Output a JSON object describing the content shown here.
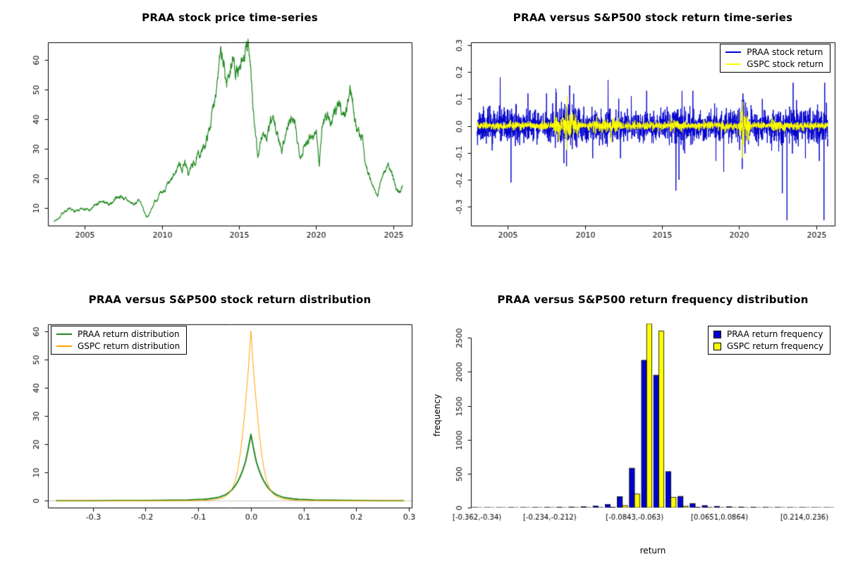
{
  "chart_data": [
    {
      "id": "price",
      "type": "price-line",
      "title": "PRAA stock price time-series",
      "color": "#228B22",
      "xlim": [
        2002.6,
        2026.2
      ],
      "xticks": [
        2005,
        2010,
        2015,
        2020,
        2025
      ],
      "xtick_labels": [
        "2005",
        "2010",
        "2015",
        "2020",
        "2025"
      ],
      "ylim": [
        4,
        66
      ],
      "yticks": [
        10,
        20,
        30,
        40,
        50,
        60
      ],
      "ytick_labels": [
        "10",
        "20",
        "30",
        "40",
        "50",
        "60"
      ],
      "noise": 0.06,
      "seed": 7,
      "anchors": {
        "x": [
          2003.0,
          2003.3,
          2003.6,
          2003.9,
          2004.2,
          2004.5,
          2004.8,
          2005.0,
          2005.3,
          2005.6,
          2005.9,
          2006.2,
          2006.5,
          2006.8,
          2007.0,
          2007.3,
          2007.6,
          2007.9,
          2008.2,
          2008.5,
          2008.8,
          2009.0,
          2009.2,
          2009.5,
          2009.8,
          2010.0,
          2010.3,
          2010.6,
          2010.9,
          2011.1,
          2011.3,
          2011.5,
          2011.7,
          2011.9,
          2012.1,
          2012.4,
          2012.7,
          2013.0,
          2013.2,
          2013.4,
          2013.6,
          2013.8,
          2014.0,
          2014.2,
          2014.4,
          2014.6,
          2014.8,
          2015.0,
          2015.2,
          2015.4,
          2015.6,
          2015.75,
          2015.9,
          2016.0,
          2016.2,
          2016.4,
          2016.6,
          2016.8,
          2017.0,
          2017.2,
          2017.4,
          2017.6,
          2017.8,
          2018.0,
          2018.2,
          2018.4,
          2018.6,
          2018.8,
          2019.0,
          2019.2,
          2019.4,
          2019.6,
          2019.8,
          2020.0,
          2020.2,
          2020.4,
          2020.6,
          2020.8,
          2021.0,
          2021.2,
          2021.4,
          2021.6,
          2021.8,
          2022.0,
          2022.2,
          2022.4,
          2022.6,
          2022.8,
          2023.0,
          2023.2,
          2023.4,
          2023.6,
          2023.8,
          2024.0,
          2024.2,
          2024.4,
          2024.6,
          2024.8,
          2025.0,
          2025.2,
          2025.4,
          2025.6
        ],
        "y": [
          5.5,
          6.5,
          8.5,
          9.5,
          9.0,
          8.8,
          9.5,
          10.0,
          9.0,
          10.5,
          11.5,
          12.0,
          11.0,
          12.0,
          13.5,
          14.0,
          13.0,
          12.0,
          11.0,
          13.0,
          9.0,
          7.0,
          8.0,
          12.0,
          14.0,
          15.0,
          17.0,
          19.0,
          22.0,
          25.5,
          23.0,
          26.0,
          21.0,
          24.0,
          25.0,
          28.0,
          30.0,
          35.0,
          40.0,
          47.0,
          55.0,
          61.0,
          58.0,
          52.0,
          57.0,
          60.0,
          57.0,
          55.0,
          58.0,
          62.0,
          64.0,
          60.0,
          45.0,
          38.0,
          27.0,
          32.0,
          36.0,
          33.0,
          38.0,
          40.0,
          36.0,
          33.0,
          30.0,
          35.0,
          38.0,
          40.0,
          38.0,
          32.0,
          28.0,
          30.0,
          33.0,
          35.0,
          34.0,
          36.0,
          25.0,
          38.0,
          42.0,
          40.0,
          38.0,
          42.0,
          46.0,
          44.0,
          41.0,
          44.0,
          50.0,
          46.0,
          38.0,
          35.0,
          34.0,
          25.0,
          22.0,
          18.0,
          16.0,
          13.5,
          20.0,
          22.0,
          24.0,
          23.0,
          20.0,
          17.0,
          15.0,
          17.5
        ]
      }
    },
    {
      "id": "returns",
      "type": "return-noise",
      "title": "PRAA versus S&P500 stock return time-series",
      "xlim": [
        2002.6,
        2026.2
      ],
      "xspan": [
        2003.0,
        2025.75
      ],
      "xticks": [
        2005,
        2010,
        2015,
        2020,
        2025
      ],
      "xtick_labels": [
        "2005",
        "2010",
        "2015",
        "2020",
        "2025"
      ],
      "ylim": [
        -0.37,
        0.31
      ],
      "yticks": [
        -0.3,
        -0.2,
        -0.1,
        0,
        0.1,
        0.2,
        0.3
      ],
      "ytick_labels": [
        "-0.3",
        "-0.2",
        "-0.1",
        "0.0",
        "0.1",
        "0.2",
        "0.3"
      ],
      "n": 2400,
      "series": [
        {
          "name": "PRAA stock return",
          "color": "#0000CD",
          "base_sd": 0.028,
          "clip": 0.36,
          "seed": 11,
          "vol_windows": [
            [
              2003,
              2004,
              0.032
            ],
            [
              2008,
              2009.6,
              0.04
            ],
            [
              2011,
              2012.2,
              0.032
            ],
            [
              2015.8,
              2016.6,
              0.038
            ],
            [
              2020,
              2020.6,
              0.04
            ],
            [
              2022.5,
              2025.8,
              0.034
            ]
          ],
          "spikes": [
            [
              2004.5,
              0.18
            ],
            [
              2005.2,
              -0.21
            ],
            [
              2006.3,
              0.12
            ],
            [
              2007.5,
              0.12
            ],
            [
              2008.8,
              -0.15
            ],
            [
              2009.0,
              0.15
            ],
            [
              2010.5,
              -0.12
            ],
            [
              2011.5,
              0.17
            ],
            [
              2012.3,
              -0.12
            ],
            [
              2013.0,
              0.11
            ],
            [
              2014.0,
              0.13
            ],
            [
              2015.9,
              -0.24
            ],
            [
              2016.1,
              -0.2
            ],
            [
              2016.3,
              0.13
            ],
            [
              2017.0,
              0.13
            ],
            [
              2018.5,
              -0.13
            ],
            [
              2019.0,
              -0.17
            ],
            [
              2020.2,
              -0.16
            ],
            [
              2020.25,
              0.12
            ],
            [
              2021.5,
              0.1
            ],
            [
              2022.8,
              -0.25
            ],
            [
              2023.1,
              -0.35
            ],
            [
              2023.5,
              0.16
            ],
            [
              2024.3,
              -0.12
            ],
            [
              2025.2,
              -0.13
            ],
            [
              2025.5,
              -0.35
            ],
            [
              2025.55,
              0.16
            ]
          ]
        },
        {
          "name": "GSPC stock return",
          "color": "#FFFF00",
          "base_sd": 0.007,
          "clip": 0.13,
          "seed": 23,
          "vol_windows": [
            [
              2008,
              2009.6,
              0.02
            ],
            [
              2010.5,
              2012.2,
              0.011
            ],
            [
              2015.5,
              2016.3,
              0.011
            ],
            [
              2018.8,
              2019.3,
              0.01
            ],
            [
              2020,
              2020.7,
              0.022
            ],
            [
              2022,
              2023,
              0.012
            ]
          ],
          "spikes": [
            [
              2008.8,
              -0.09
            ],
            [
              2008.85,
              0.11
            ],
            [
              2011.7,
              -0.06
            ],
            [
              2020.2,
              -0.12
            ],
            [
              2020.24,
              0.09
            ],
            [
              2020.3,
              -0.07
            ]
          ]
        }
      ]
    },
    {
      "id": "density",
      "type": "density-lines",
      "title": "PRAA versus S&P500 stock return distribution",
      "baseline_color": "#c8c8c8",
      "xlim": [
        -0.385,
        0.305
      ],
      "xticks": [
        -0.3,
        -0.2,
        -0.1,
        0,
        0.1,
        0.2,
        0.3
      ],
      "xtick_labels": [
        "-0.3",
        "-0.2",
        "-0.1",
        "0.0",
        "0.1",
        "0.2",
        "0.3"
      ],
      "ylim": [
        -2.4,
        62.4
      ],
      "yticks": [
        0,
        10,
        20,
        30,
        40,
        50,
        60
      ],
      "ytick_labels": [
        "0",
        "10",
        "20",
        "30",
        "40",
        "50",
        "60"
      ],
      "series": [
        {
          "name": "PRAA return distribution",
          "color": "#228B22",
          "width": 2,
          "x": [
            -0.37,
            -0.35,
            -0.3,
            -0.25,
            -0.2,
            -0.15,
            -0.12,
            -0.1,
            -0.09,
            -0.08,
            -0.07,
            -0.06,
            -0.05,
            -0.045,
            -0.04,
            -0.035,
            -0.03,
            -0.025,
            -0.02,
            -0.015,
            -0.01,
            -0.005,
            0,
            0.005,
            0.01,
            0.015,
            0.02,
            0.025,
            0.03,
            0.035,
            0.04,
            0.045,
            0.05,
            0.06,
            0.07,
            0.08,
            0.09,
            0.1,
            0.12,
            0.15,
            0.2,
            0.25,
            0.29
          ],
          "y": [
            0.02,
            0.03,
            0.05,
            0.07,
            0.1,
            0.2,
            0.3,
            0.45,
            0.55,
            0.7,
            0.95,
            1.3,
            2.0,
            2.5,
            3.2,
            4.1,
            5.3,
            6.8,
            8.7,
            11.0,
            14.0,
            18.5,
            23.5,
            18.5,
            14.0,
            11.0,
            8.7,
            6.8,
            5.3,
            4.1,
            3.2,
            2.5,
            2.0,
            1.3,
            0.95,
            0.7,
            0.55,
            0.45,
            0.3,
            0.2,
            0.1,
            0.05,
            0.03
          ]
        },
        {
          "name": "GSPC return distribution",
          "color": "#FFA500",
          "width": 1,
          "x": [
            -0.37,
            -0.35,
            -0.3,
            -0.25,
            -0.2,
            -0.15,
            -0.12,
            -0.1,
            -0.09,
            -0.08,
            -0.07,
            -0.06,
            -0.05,
            -0.045,
            -0.04,
            -0.035,
            -0.03,
            -0.025,
            -0.02,
            -0.015,
            -0.01,
            -0.005,
            0,
            0.005,
            0.01,
            0.015,
            0.02,
            0.025,
            0.03,
            0.035,
            0.04,
            0.045,
            0.05,
            0.06,
            0.07,
            0.08,
            0.09,
            0.1,
            0.12,
            0.15,
            0.2,
            0.25,
            0.29
          ],
          "y": [
            0.01,
            0.01,
            0.01,
            0.01,
            0.02,
            0.03,
            0.05,
            0.1,
            0.15,
            0.25,
            0.4,
            0.7,
            1.4,
            2.0,
            3.0,
            4.5,
            7.0,
            11.0,
            17.0,
            25.0,
            35.0,
            46.0,
            60.0,
            46.0,
            35.0,
            25.0,
            17.0,
            11.0,
            7.0,
            4.5,
            3.0,
            2.0,
            1.4,
            0.7,
            0.4,
            0.25,
            0.15,
            0.1,
            0.05,
            0.03,
            0.02,
            0.01,
            0.01
          ]
        }
      ]
    },
    {
      "id": "frequency",
      "type": "grouped-bars",
      "title": "PRAA versus S&P500 return frequency distribution",
      "xlabel": "return",
      "ylabel": "frequency",
      "ylim": [
        0,
        2700
      ],
      "yticks": [
        0,
        500,
        1000,
        1500,
        2000,
        2500
      ],
      "ytick_labels": [
        "0",
        "500",
        "1000",
        "1500",
        "2000",
        "2500"
      ],
      "bin_labels": [
        {
          "index": 0,
          "label": "[-0.362,-0.34)"
        },
        {
          "index": 6,
          "label": "[-0.234,-0.212)"
        },
        {
          "index": 13,
          "label": "[-0.0843,-0.063)"
        },
        {
          "index": 20,
          "label": "[0.0651,0.0864)"
        },
        {
          "index": 27,
          "label": "[0.214,0.236)"
        }
      ],
      "series": [
        {
          "name": "PRAA return frequency",
          "color": "#0000CD",
          "values": [
            2,
            1,
            1,
            2,
            2,
            3,
            4,
            6,
            8,
            12,
            22,
            45,
            160,
            580,
            2170,
            1950,
            530,
            165,
            60,
            30,
            18,
            12,
            8,
            5,
            4,
            3,
            2,
            2,
            1,
            1
          ]
        },
        {
          "name": "GSPC return frequency",
          "color": "#FFFF00",
          "values": [
            0,
            0,
            0,
            0,
            0,
            0,
            0,
            0,
            1,
            1,
            2,
            5,
            30,
            200,
            2780,
            2600,
            150,
            20,
            5,
            3,
            1,
            1,
            0,
            0,
            0,
            0,
            0,
            0,
            0,
            0
          ]
        }
      ]
    }
  ]
}
